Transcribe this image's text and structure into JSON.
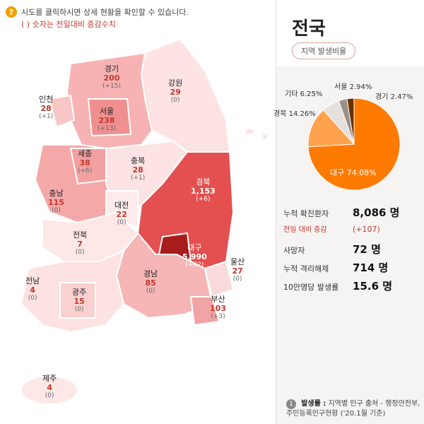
{
  "help": {
    "icon": "?",
    "text": "시도를 클릭하시면 상세 현황을 확인할 수 있습니다.",
    "sub": "( ) 숫자는 전일대비 증감수치"
  },
  "regions": [
    {
      "id": "gyeonggi",
      "name": "경기",
      "count": "200",
      "delta": "(+15)"
    },
    {
      "id": "gangwon",
      "name": "강원",
      "count": "29",
      "delta": "(0)"
    },
    {
      "id": "incheon",
      "name": "인천",
      "count": "28",
      "delta": "(+1)"
    },
    {
      "id": "seoul",
      "name": "서울",
      "count": "238",
      "delta": "(+13)"
    },
    {
      "id": "sejong",
      "name": "세종",
      "count": "38",
      "delta": "(+6)"
    },
    {
      "id": "chungbuk",
      "name": "충북",
      "count": "28",
      "delta": "(+1)"
    },
    {
      "id": "gyeongbuk",
      "name": "경북",
      "count": "1,153",
      "delta": "(+6)"
    },
    {
      "id": "chungnam",
      "name": "충남",
      "count": "115",
      "delta": "(0)"
    },
    {
      "id": "daejeon",
      "name": "대전",
      "count": "22",
      "delta": "(0)"
    },
    {
      "id": "jeonbuk",
      "name": "전북",
      "count": "7",
      "delta": "(0)"
    },
    {
      "id": "daegu",
      "name": "대구",
      "count": "5,990",
      "delta": "(+62)"
    },
    {
      "id": "ulsan",
      "name": "울산",
      "count": "27",
      "delta": "(0)"
    },
    {
      "id": "gyeongnam",
      "name": "경남",
      "count": "85",
      "delta": "(0)"
    },
    {
      "id": "jeonnam",
      "name": "전남",
      "count": "4",
      "delta": "(0)"
    },
    {
      "id": "gwangju",
      "name": "광주",
      "count": "15",
      "delta": "(0)"
    },
    {
      "id": "busan",
      "name": "부산",
      "count": "103",
      "delta": "(+3)"
    },
    {
      "id": "jeju",
      "name": "제주",
      "count": "4",
      "delta": "(0)"
    }
  ],
  "panel": {
    "title": "전국",
    "rate_button": "지역 발생비율",
    "pie_labels": {
      "seoul": "서울 2.94%",
      "gita": "기타 6.25%",
      "gyeonggi": "경기 2.47%",
      "gyeongbuk": "경북 14.26%",
      "daegu": "대구 74.08%"
    },
    "pie_values": [
      74.08,
      14.26,
      6.25,
      2.94,
      2.47
    ],
    "pie_colors": [
      "#ff7a00",
      "#ffa24d",
      "#e6e0dc",
      "#9a9088",
      "#6b3000"
    ],
    "stats": {
      "confirmed_label": "누적 확진환자",
      "confirmed_value": "8,086 명",
      "delta_label": "전일 대비 증감",
      "delta_value": "(+107)",
      "deaths_label": "사망자",
      "deaths_value": "72 명",
      "released_label": "누적 격리해제",
      "released_value": "714 명",
      "rate_label": "10만명당 발생률",
      "rate_value": "15.6 명"
    },
    "note": {
      "num": "1",
      "key": "발생률 :",
      "text": "지역별 인구 출처 - 행정안전부, 주민등록인구현황 ('20.1월 기준)"
    }
  }
}
